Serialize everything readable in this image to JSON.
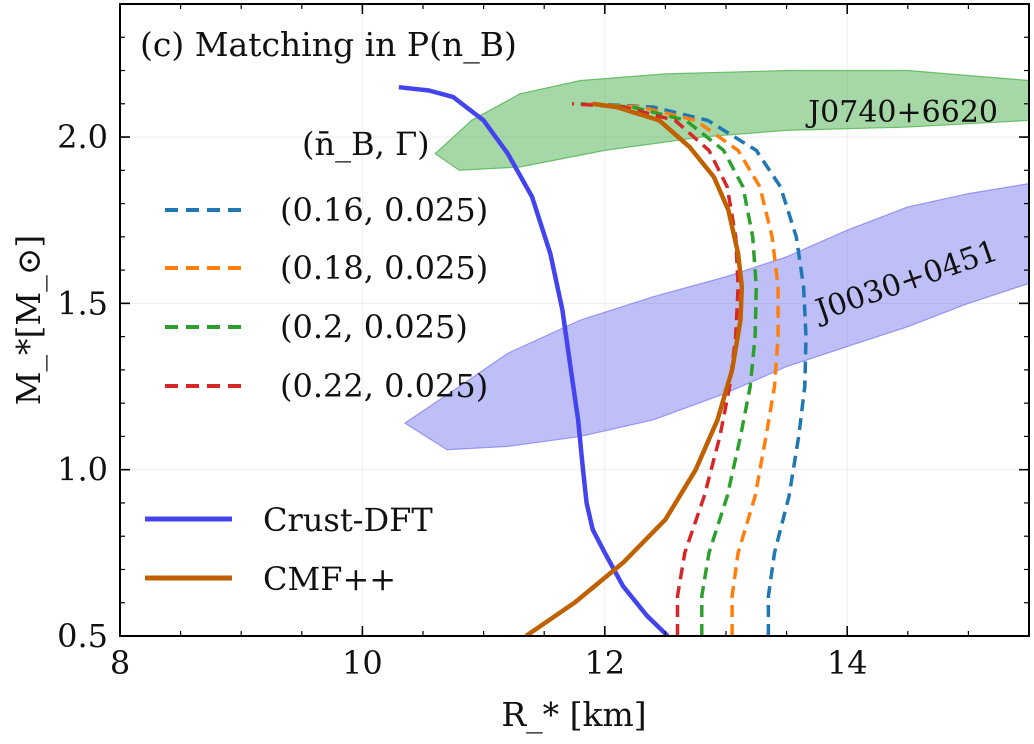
{
  "chart_data": {
    "type": "line",
    "title": "(c) Matching in P(n_B)",
    "xlabel": "R_* [km]",
    "ylabel": "M_*[M_⊙]",
    "xlim": [
      8,
      15.5
    ],
    "ylim": [
      0.5,
      2.4
    ],
    "xticks": [
      8,
      10,
      12,
      14
    ],
    "yticks": [
      0.5,
      1.0,
      1.5,
      2.0
    ],
    "xtick_labels": [
      "8",
      "10",
      "12",
      "14"
    ],
    "ytick_labels": [
      "0.5",
      "1.0",
      "1.5",
      "2.0"
    ],
    "grid": true,
    "legend_title": "(n̄_B, Γ)",
    "legend_placement": "left",
    "regions": [
      {
        "name": "J0740+6620",
        "label": "J0740+6620",
        "color": "#2ca02c",
        "polygon": [
          [
            10.6,
            1.95
          ],
          [
            10.9,
            2.05
          ],
          [
            11.3,
            2.13
          ],
          [
            11.8,
            2.17
          ],
          [
            12.5,
            2.19
          ],
          [
            13.5,
            2.2
          ],
          [
            14.5,
            2.2
          ],
          [
            15.5,
            2.17
          ],
          [
            15.5,
            2.05
          ],
          [
            14.5,
            2.03
          ],
          [
            13.5,
            2.02
          ],
          [
            12.8,
            2.0
          ],
          [
            12.0,
            1.96
          ],
          [
            11.3,
            1.91
          ],
          [
            10.8,
            1.9
          ]
        ]
      },
      {
        "name": "J0030+0451",
        "label": "J0030+0451",
        "color": "#6666ee",
        "polygon": [
          [
            10.35,
            1.14
          ],
          [
            10.8,
            1.25
          ],
          [
            11.2,
            1.35
          ],
          [
            11.8,
            1.45
          ],
          [
            12.4,
            1.52
          ],
          [
            13.0,
            1.58
          ],
          [
            13.5,
            1.64
          ],
          [
            14.0,
            1.72
          ],
          [
            14.5,
            1.79
          ],
          [
            15.0,
            1.83
          ],
          [
            15.5,
            1.86
          ],
          [
            15.5,
            1.56
          ],
          [
            15.0,
            1.5
          ],
          [
            14.5,
            1.43
          ],
          [
            14.0,
            1.37
          ],
          [
            13.5,
            1.31
          ],
          [
            13.0,
            1.23
          ],
          [
            12.4,
            1.15
          ],
          [
            11.8,
            1.1
          ],
          [
            11.2,
            1.07
          ],
          [
            10.7,
            1.06
          ]
        ]
      }
    ],
    "series": [
      {
        "name": "(0.16, 0.025)",
        "color": "#1f77b4",
        "style": "dashed",
        "x": [
          13.35,
          13.35,
          13.4,
          13.52,
          13.6,
          13.65,
          13.66,
          13.64,
          13.58,
          13.45,
          13.25,
          12.85,
          12.4,
          11.9
        ],
        "y": [
          0.5,
          0.62,
          0.75,
          0.92,
          1.1,
          1.25,
          1.4,
          1.55,
          1.7,
          1.85,
          1.96,
          2.05,
          2.09,
          2.1
        ]
      },
      {
        "name": "(0.18, 0.025)",
        "color": "#ff7f0e",
        "style": "dashed",
        "x": [
          13.05,
          13.05,
          13.1,
          13.24,
          13.33,
          13.4,
          13.43,
          13.43,
          13.38,
          13.28,
          13.1,
          12.75,
          12.3,
          11.85
        ],
        "y": [
          0.5,
          0.62,
          0.75,
          0.92,
          1.1,
          1.25,
          1.4,
          1.55,
          1.7,
          1.85,
          1.96,
          2.05,
          2.09,
          2.1
        ]
      },
      {
        "name": "(0.2, 0.025)",
        "color": "#2ca02c",
        "style": "dashed",
        "x": [
          12.8,
          12.8,
          12.86,
          13.01,
          13.12,
          13.2,
          13.24,
          13.25,
          13.22,
          13.14,
          12.98,
          12.67,
          12.23,
          11.8
        ],
        "y": [
          0.5,
          0.62,
          0.75,
          0.92,
          1.1,
          1.25,
          1.4,
          1.55,
          1.7,
          1.85,
          1.96,
          2.05,
          2.09,
          2.1
        ]
      },
      {
        "name": "(0.22, 0.025)",
        "color": "#d62728",
        "style": "dashed",
        "x": [
          12.6,
          12.6,
          12.66,
          12.82,
          12.95,
          13.03,
          13.08,
          13.1,
          13.08,
          13.01,
          12.86,
          12.58,
          12.16,
          11.73
        ],
        "y": [
          0.5,
          0.62,
          0.75,
          0.92,
          1.1,
          1.25,
          1.4,
          1.55,
          1.7,
          1.85,
          1.96,
          2.05,
          2.09,
          2.1
        ]
      },
      {
        "name": "Crust-DFT",
        "color": "#4444ee",
        "style": "solid",
        "x": [
          10.3,
          10.55,
          10.75,
          11.0,
          11.2,
          11.4,
          11.55,
          11.65,
          11.72,
          11.78,
          11.82,
          11.85,
          11.9,
          12.0,
          12.15,
          12.35,
          12.52
        ],
        "y": [
          2.15,
          2.14,
          2.12,
          2.05,
          1.95,
          1.82,
          1.65,
          1.48,
          1.3,
          1.15,
          1.0,
          0.9,
          0.82,
          0.75,
          0.65,
          0.56,
          0.5
        ]
      },
      {
        "name": "CMF++",
        "color": "#c06000",
        "style": "solid",
        "x": [
          11.35,
          11.75,
          12.15,
          12.5,
          12.75,
          12.93,
          13.05,
          13.12,
          13.13,
          13.1,
          13.02,
          12.9,
          12.7,
          12.45,
          12.1,
          11.9
        ],
        "y": [
          0.5,
          0.6,
          0.72,
          0.85,
          1.0,
          1.15,
          1.3,
          1.45,
          1.55,
          1.65,
          1.78,
          1.88,
          1.97,
          2.05,
          2.09,
          2.1
        ]
      }
    ]
  }
}
